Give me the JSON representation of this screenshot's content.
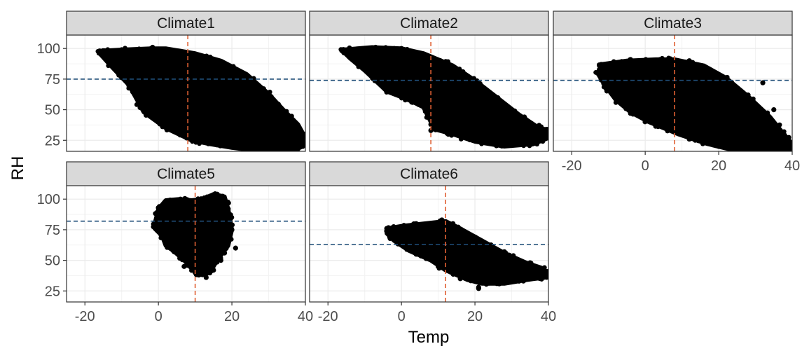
{
  "chart_data": {
    "type": "scatter",
    "xlabel": "Temp",
    "ylabel": "RH",
    "xlim": [
      -25,
      40
    ],
    "ylim": [
      16,
      111
    ],
    "x_ticks": [
      -20,
      0,
      20,
      40
    ],
    "y_ticks": [
      25,
      50,
      75,
      100
    ],
    "grid": true,
    "colors": {
      "points": "#000000",
      "temp_ref_line": "#e06033",
      "rh_ref_line": "#1f4e79",
      "strip_fill": "#d9d9d9",
      "grid": "#ebebeb"
    },
    "panels": [
      {
        "name": "Climate1",
        "temp_ref": 8,
        "rh_ref": 75,
        "cloud": [
          [
            -16,
            98
          ],
          [
            -10,
            99
          ],
          [
            -2,
            100
          ],
          [
            2,
            100
          ],
          [
            10,
            96
          ],
          [
            17,
            90
          ],
          [
            24,
            79
          ],
          [
            30,
            63
          ],
          [
            34,
            50
          ],
          [
            38,
            38
          ],
          [
            40,
            27
          ],
          [
            39,
            20
          ],
          [
            36,
            16
          ],
          [
            33,
            15
          ],
          [
            28,
            16
          ],
          [
            20,
            19
          ],
          [
            14,
            22
          ],
          [
            9,
            25
          ],
          [
            2,
            35
          ],
          [
            -4,
            48
          ],
          [
            -8,
            70
          ],
          [
            -13,
            86
          ],
          [
            -16,
            96
          ]
        ],
        "points": [
          [
            -16,
            98
          ],
          [
            -10,
            99
          ],
          [
            -2,
            100
          ],
          [
            8,
            96
          ],
          [
            -8,
            90
          ],
          [
            0,
            86
          ],
          [
            -6,
            76
          ],
          [
            -5,
            61
          ],
          [
            -1,
            48
          ],
          [
            3,
            40
          ],
          [
            8,
            30
          ],
          [
            12,
            24
          ],
          [
            20,
            22
          ],
          [
            27,
            18
          ],
          [
            33,
            15
          ],
          [
            38,
            18
          ],
          [
            40,
            21
          ],
          [
            36,
            32
          ],
          [
            30,
            40
          ],
          [
            24,
            50
          ],
          [
            18,
            60
          ],
          [
            12,
            70
          ],
          [
            5,
            78
          ]
        ]
      },
      {
        "name": "Climate2",
        "temp_ref": 8,
        "rh_ref": 74,
        "cloud": [
          [
            -16,
            99
          ],
          [
            -8,
            101
          ],
          [
            0,
            100
          ],
          [
            6,
            96
          ],
          [
            14,
            86
          ],
          [
            20,
            74
          ],
          [
            26,
            60
          ],
          [
            32,
            46
          ],
          [
            37,
            36
          ],
          [
            40,
            33
          ],
          [
            40,
            27
          ],
          [
            36,
            22
          ],
          [
            28,
            20
          ],
          [
            20,
            24
          ],
          [
            14,
            30
          ],
          [
            9,
            34
          ],
          [
            8,
            40
          ],
          [
            6,
            52
          ],
          [
            2,
            58
          ],
          [
            -4,
            65
          ],
          [
            -10,
            82
          ],
          [
            -14,
            92
          ],
          [
            -16,
            98
          ]
        ],
        "points": [
          [
            -16,
            99
          ],
          [
            -8,
            100
          ],
          [
            0,
            100
          ],
          [
            -8,
            86
          ],
          [
            -6,
            76
          ],
          [
            -4,
            72
          ],
          [
            2,
            58
          ],
          [
            8,
            38
          ],
          [
            8,
            33
          ],
          [
            14,
            31
          ],
          [
            22,
            25
          ],
          [
            28,
            22
          ],
          [
            34,
            22
          ],
          [
            40,
            31
          ],
          [
            38,
            36
          ],
          [
            30,
            44
          ],
          [
            24,
            55
          ],
          [
            18,
            64
          ],
          [
            12,
            75
          ],
          [
            6,
            88
          ]
        ]
      },
      {
        "name": "Climate3",
        "temp_ref": 8,
        "rh_ref": 74,
        "cloud": [
          [
            -12,
            87
          ],
          [
            -5,
            90
          ],
          [
            3,
            91
          ],
          [
            8,
            91
          ],
          [
            16,
            86
          ],
          [
            22,
            76
          ],
          [
            28,
            61
          ],
          [
            34,
            44
          ],
          [
            38,
            29
          ],
          [
            40,
            22
          ],
          [
            39,
            17
          ],
          [
            35,
            15
          ],
          [
            30,
            15
          ],
          [
            24,
            17
          ],
          [
            17,
            22
          ],
          [
            9,
            30
          ],
          [
            1,
            40
          ],
          [
            -4,
            48
          ],
          [
            -8,
            58
          ],
          [
            -11,
            70
          ],
          [
            -13,
            80
          ],
          [
            -12,
            86
          ]
        ],
        "points": [
          [
            -12,
            87
          ],
          [
            -4,
            91
          ],
          [
            4,
            91
          ],
          [
            12,
            90
          ],
          [
            22,
            76
          ],
          [
            28,
            62
          ],
          [
            32,
            72
          ],
          [
            35,
            50
          ],
          [
            40,
            22
          ],
          [
            36,
            15
          ],
          [
            28,
            16
          ],
          [
            20,
            20
          ],
          [
            12,
            26
          ],
          [
            4,
            38
          ],
          [
            -4,
            47
          ],
          [
            -10,
            66
          ],
          [
            -13,
            80
          ]
        ]
      },
      {
        "name": "Climate5",
        "temp_ref": 10,
        "rh_ref": 82,
        "cloud": [
          [
            -1,
            80
          ],
          [
            0,
            92
          ],
          [
            2,
            99
          ],
          [
            6,
            100
          ],
          [
            9,
            99
          ],
          [
            12,
            100
          ],
          [
            15,
            104
          ],
          [
            18,
            102
          ],
          [
            19,
            92
          ],
          [
            20,
            75
          ],
          [
            19,
            62
          ],
          [
            16,
            50
          ],
          [
            14,
            40
          ],
          [
            12,
            38
          ],
          [
            10,
            40
          ],
          [
            7,
            50
          ],
          [
            4,
            58
          ],
          [
            2,
            62
          ],
          [
            1,
            70
          ],
          [
            -1,
            76
          ]
        ],
        "points": [
          [
            -1,
            80
          ],
          [
            2,
            98
          ],
          [
            6,
            100
          ],
          [
            12,
            100
          ],
          [
            16,
            104
          ],
          [
            19,
            92
          ],
          [
            20,
            75
          ],
          [
            21,
            60
          ],
          [
            17,
            50
          ],
          [
            15,
            42
          ],
          [
            13,
            36
          ],
          [
            11,
            38
          ],
          [
            8,
            46
          ],
          [
            4,
            58
          ],
          [
            2,
            66
          ],
          [
            0,
            78
          ],
          [
            7,
            45
          ],
          [
            10,
            40
          ],
          [
            18,
            56
          ]
        ]
      },
      {
        "name": "Climate6",
        "temp_ref": 12,
        "rh_ref": 63,
        "cloud": [
          [
            -4,
            76
          ],
          [
            0,
            78
          ],
          [
            6,
            80
          ],
          [
            12,
            82
          ],
          [
            16,
            76
          ],
          [
            22,
            66
          ],
          [
            28,
            56
          ],
          [
            34,
            48
          ],
          [
            38,
            44
          ],
          [
            40,
            40
          ],
          [
            39,
            36
          ],
          [
            34,
            34
          ],
          [
            28,
            31
          ],
          [
            22,
            31
          ],
          [
            18,
            34
          ],
          [
            12,
            42
          ],
          [
            8,
            50
          ],
          [
            2,
            58
          ],
          [
            -2,
            66
          ],
          [
            -4,
            72
          ]
        ],
        "points": [
          [
            -4,
            76
          ],
          [
            4,
            80
          ],
          [
            11,
            83
          ],
          [
            14,
            80
          ],
          [
            20,
            69
          ],
          [
            28,
            57
          ],
          [
            35,
            48
          ],
          [
            40,
            41
          ],
          [
            38,
            36
          ],
          [
            32,
            33
          ],
          [
            26,
            31
          ],
          [
            21,
            28
          ],
          [
            16,
            35
          ],
          [
            10,
            45
          ],
          [
            4,
            55
          ],
          [
            -1,
            66
          ],
          [
            21,
            27
          ]
        ]
      }
    ]
  }
}
